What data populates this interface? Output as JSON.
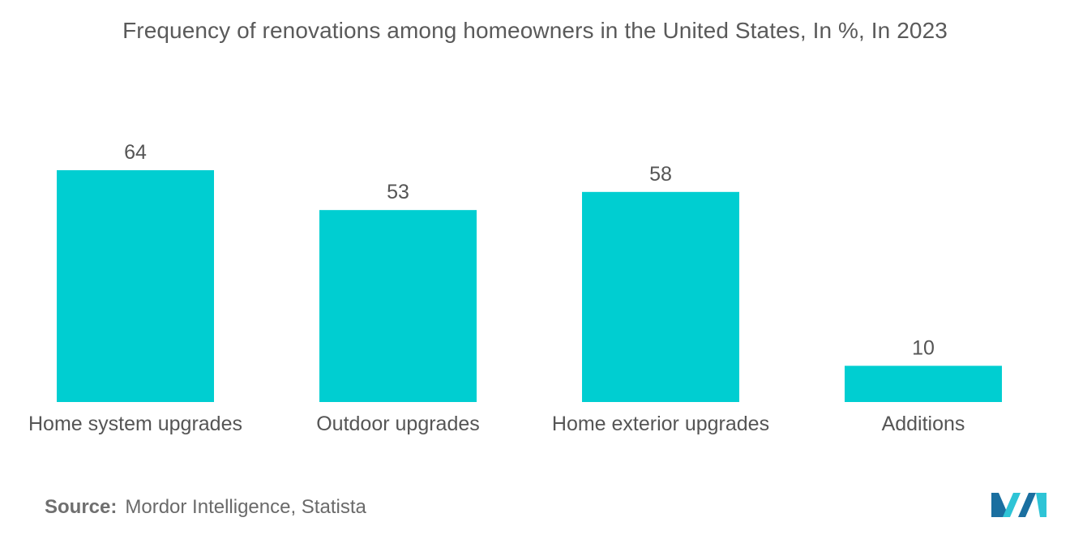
{
  "chart_data": {
    "type": "bar",
    "title": "Frequency of renovations among homeowners in the United States, In %, In 2023",
    "categories": [
      "Home system upgrades",
      "Outdoor upgrades",
      "Home exterior upgrades",
      "Additions"
    ],
    "values": [
      64,
      53,
      58,
      10
    ],
    "xlabel": "",
    "ylabel": "",
    "ylim": [
      0,
      64
    ],
    "grid": false,
    "legend": "none",
    "bar_color": "#00ced1"
  },
  "footer": {
    "source_label": "Source:",
    "source_text": "Mordor Intelligence, Statista"
  },
  "logo": {
    "icon": "mordor-intelligence-logo-icon",
    "color_dark": "#1a6fa0",
    "color_light": "#2ec4d6"
  }
}
